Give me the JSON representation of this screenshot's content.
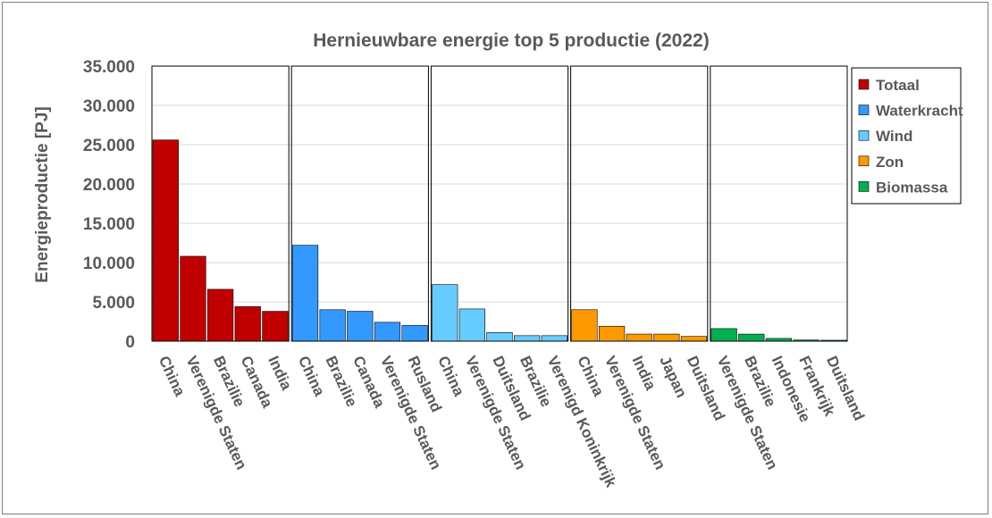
{
  "chart_data": {
    "type": "bar",
    "title": "Hernieuwbare energie top 5 productie (2022)",
    "xlabel": "",
    "ylabel": "Energieproductie [PJ]",
    "ylim": [
      0,
      35000
    ],
    "yticks": [
      "0",
      "5.000",
      "10.000",
      "15.000",
      "20.000",
      "25.000",
      "30.000",
      "35.000"
    ],
    "ytick_values": [
      0,
      5000,
      10000,
      15000,
      20000,
      25000,
      30000,
      35000
    ],
    "grid": true,
    "legend_position": "top-right",
    "series": [
      {
        "name": "Totaal",
        "color": "#c00000",
        "categories": [
          "China",
          "Verenigde Staten",
          "Brazilie",
          "Canada",
          "India"
        ],
        "values": [
          25600,
          10800,
          6600,
          4400,
          3800
        ]
      },
      {
        "name": "Waterkracht",
        "color": "#3399ff",
        "categories": [
          "China",
          "Brazilie",
          "Canada",
          "Verenigde Staten",
          "Rusland"
        ],
        "values": [
          12200,
          4000,
          3800,
          2400,
          2000
        ]
      },
      {
        "name": "Wind",
        "color": "#66ccff",
        "categories": [
          "China",
          "Verenigde Staten",
          "Duitsland",
          "Brazilie",
          "Verenigd Koninkrijk"
        ],
        "values": [
          7200,
          4100,
          1100,
          700,
          700
        ]
      },
      {
        "name": "Zon",
        "color": "#ff9900",
        "categories": [
          "China",
          "Verenigde Staten",
          "India",
          "Japan",
          "Duitsland"
        ],
        "values": [
          4000,
          1900,
          900,
          900,
          600
        ]
      },
      {
        "name": "Biomassa",
        "color": "#00b050",
        "categories": [
          "Verenigde Staten",
          "Brazilie",
          "Indonesie",
          "Frankrijk",
          "Duitsland"
        ],
        "values": [
          1600,
          900,
          350,
          150,
          120
        ]
      }
    ]
  }
}
